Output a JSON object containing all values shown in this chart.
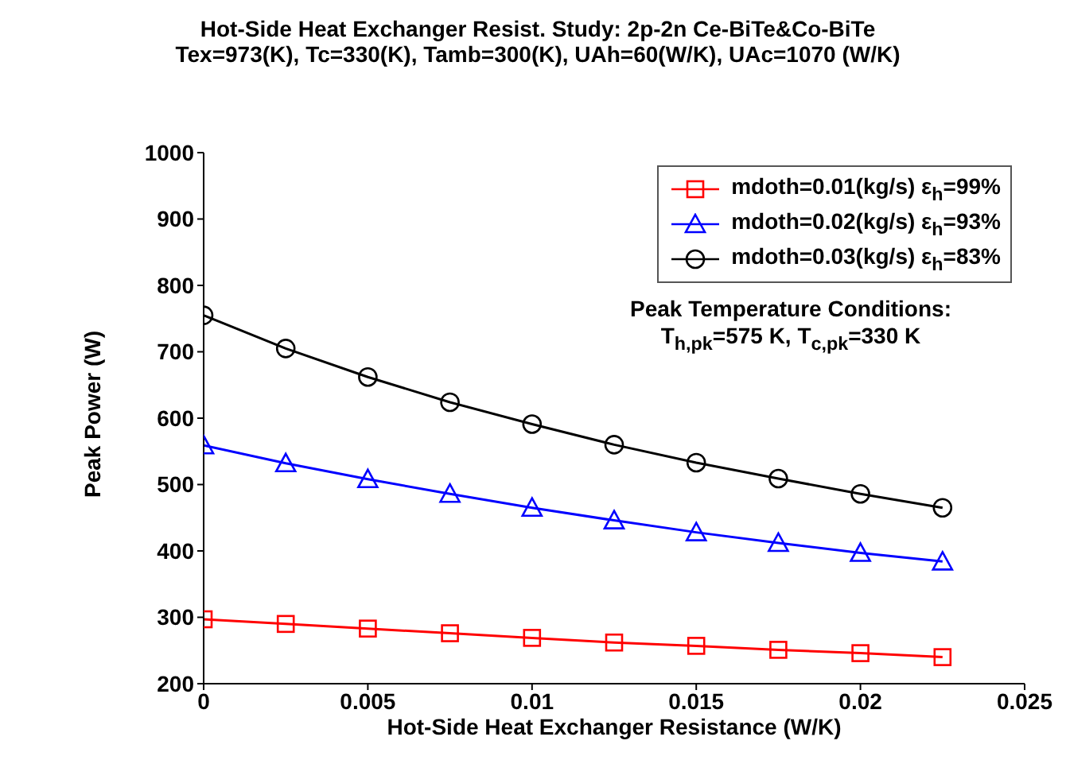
{
  "chart_data": {
    "type": "line",
    "title": "Hot-Side Heat Exchanger Resist. Study:   2p-2n Ce-BiTe&Co-BiTe",
    "subtitle": "Tex=973(K), Tc=330(K), Tamb=300(K), UAh=60(W/K), UAc=1070 (W/K)",
    "xlabel": "Hot-Side Heat Exchanger Resistance (W/K)",
    "ylabel": "Peak Power (W)",
    "x": [
      0,
      0.0025,
      0.005,
      0.0075,
      0.01,
      0.0125,
      0.015,
      0.0175,
      0.02,
      0.0225
    ],
    "series": [
      {
        "name": "mdoth=0.01(kg/s) ε$_{h}$=99%",
        "color": "#ff0000",
        "marker": "square",
        "values": [
          297,
          290,
          283,
          276,
          269,
          262,
          257,
          251,
          246,
          240
        ]
      },
      {
        "name": "mdoth=0.02(kg/s) ε$_{h}$=93%",
        "color": "#0000ff",
        "marker": "triangle",
        "values": [
          559,
          532,
          508,
          486,
          465,
          446,
          428,
          412,
          397,
          384
        ]
      },
      {
        "name": "mdoth=0.03(kg/s) ε$_{h}$=83%",
        "color": "#000000",
        "marker": "circle",
        "values": [
          755,
          705,
          662,
          624,
          591,
          560,
          533,
          509,
          486,
          465
        ]
      }
    ],
    "xlim": [
      0,
      0.025
    ],
    "xticks": [
      0,
      0.005,
      0.01,
      0.015,
      0.02,
      0.025
    ],
    "ylim": [
      200,
      1000
    ],
    "yticks": [
      200,
      300,
      400,
      500,
      600,
      700,
      800,
      900,
      1000
    ],
    "legend": "top right",
    "grid": false,
    "line_style": "solid",
    "annotations": [
      "Peak Temperature Conditions:",
      "T$_{h,pk}$=575 K, T$_{c,pk}$=330 K"
    ]
  }
}
